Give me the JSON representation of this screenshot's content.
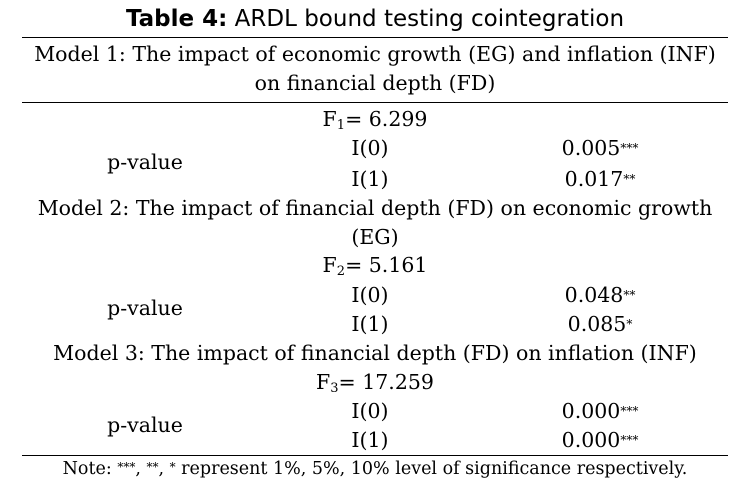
{
  "table": {
    "caption_label": "Table 4:",
    "caption_title": "ARDL bound testing cointegration",
    "models": [
      {
        "title_line1": "Model 1: The impact of economic growth (EG) and inflation (INF)",
        "title_line2": "on financial depth (FD)",
        "f_letter": "F",
        "f_sub": "1",
        "f_value": "= 6.299",
        "p_label": "p-value",
        "rows": [
          {
            "level": "I(0)",
            "value": "0.005",
            "stars": "***"
          },
          {
            "level": "I(1)",
            "value": "0.017",
            "stars": "**"
          }
        ]
      },
      {
        "title_line1": "Model 2: The impact of financial depth (FD) on economic growth",
        "title_line2": "(EG)",
        "f_letter": "F",
        "f_sub": "2",
        "f_value": "= 5.161",
        "p_label": "p-value",
        "rows": [
          {
            "level": "I(0)",
            "value": "0.048",
            "stars": "**"
          },
          {
            "level": "I(1)",
            "value": "0.085",
            "stars": "*"
          }
        ]
      },
      {
        "title_line1": "Model 3: The impact of financial depth (FD) on inflation (INF)",
        "f_letter": "F",
        "f_sub": "3",
        "f_value": "= 17.259",
        "p_label": "p-value",
        "rows": [
          {
            "level": "I(0)",
            "value": "0.000",
            "stars": "***"
          },
          {
            "level": "I(1)",
            "value": "0.000",
            "stars": "***"
          }
        ]
      }
    ],
    "note_prefix": "Note: ",
    "note_s3": "***",
    "note_sep1": ", ",
    "note_s2": "**",
    "note_sep2": ", ",
    "note_s1": "*",
    "note_text": " represent 1%, 5%, 10% level of significance respectively."
  }
}
